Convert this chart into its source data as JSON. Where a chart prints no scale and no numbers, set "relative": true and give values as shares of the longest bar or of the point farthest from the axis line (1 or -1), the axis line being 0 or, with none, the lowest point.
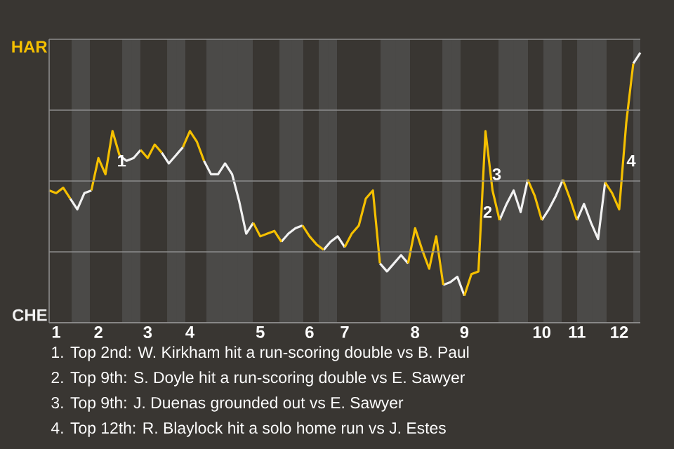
{
  "chart_data": {
    "type": "line",
    "relative": true,
    "grid": "y",
    "categories": [
      null,
      "1",
      null,
      null,
      null,
      null,
      null,
      "2",
      null,
      null,
      null,
      null,
      null,
      null,
      "3",
      null,
      null,
      null,
      null,
      null,
      "4",
      null,
      null,
      null,
      null,
      null,
      null,
      null,
      null,
      null,
      "5",
      null,
      null,
      null,
      null,
      null,
      null,
      "6",
      null,
      null,
      null,
      null,
      "7",
      null,
      null,
      null,
      null,
      null,
      null,
      null,
      null,
      null,
      "8",
      null,
      null,
      null,
      null,
      null,
      null,
      "9",
      null,
      null,
      null,
      null,
      null,
      null,
      null,
      null,
      null,
      null,
      "10",
      null,
      null,
      null,
      null,
      "11",
      null,
      null,
      null,
      null,
      null,
      "12",
      null,
      null,
      null
    ],
    "series": [
      {
        "color": "#f5c000",
        "values": [
          0.49,
          0.48,
          0.5,
          0.46,
          null,
          null,
          0.49,
          0.61,
          0.55,
          0.71,
          0.62,
          null,
          null,
          0.64,
          0.61,
          0.66,
          0.63,
          null,
          null,
          0.65,
          0.71,
          0.67,
          0.6,
          null,
          null,
          null,
          null,
          null,
          null,
          0.37,
          0.32,
          0.33,
          0.34,
          0.3,
          null,
          null,
          0.36,
          0.32,
          0.29,
          0.27,
          null,
          null,
          0.28,
          0.33,
          0.36,
          0.46,
          0.49,
          0.22,
          null,
          null,
          null,
          0.22,
          0.35,
          0.27,
          0.2,
          0.32,
          0.14,
          null,
          null,
          0.1,
          0.18,
          0.19,
          0.71,
          0.49,
          0.38,
          null,
          null,
          null,
          0.53,
          0.47,
          0.38,
          null,
          null,
          0.53,
          0.46,
          0.38,
          null,
          null,
          null,
          0.52,
          0.48,
          0.42,
          0.74,
          0.96,
          null
        ]
      },
      {
        "color": "#f2f2f2",
        "values": [
          null,
          null,
          null,
          0.46,
          0.42,
          0.48,
          0.49,
          null,
          null,
          null,
          0.62,
          0.6,
          0.61,
          0.64,
          null,
          null,
          0.63,
          0.59,
          0.62,
          0.65,
          null,
          null,
          0.6,
          0.55,
          0.55,
          0.59,
          0.55,
          0.45,
          0.33,
          0.37,
          null,
          null,
          null,
          0.3,
          0.33,
          0.35,
          0.36,
          null,
          null,
          0.27,
          0.3,
          0.32,
          0.28,
          null,
          null,
          null,
          null,
          0.22,
          0.19,
          0.22,
          0.25,
          0.22,
          null,
          null,
          null,
          null,
          0.14,
          0.15,
          0.17,
          0.1,
          null,
          null,
          null,
          null,
          0.38,
          0.44,
          0.49,
          0.41,
          0.53,
          null,
          0.38,
          0.42,
          0.47,
          0.53,
          null,
          0.38,
          0.44,
          0.37,
          0.31,
          0.52,
          null,
          null,
          null,
          0.96,
          1
        ]
      }
    ],
    "annotations": [
      "HAR",
      "CHE",
      {
        "text": "1",
        "y": 0.6
      },
      {
        "text": "2",
        "y": 0.41
      },
      {
        "text": "3",
        "y": 0.55
      },
      {
        "text": "4",
        "y": 0.6
      },
      "1. Top 2nd: W. Kirkham hit a run-scoring double vs B. Paul",
      "2. Top 9th: S. Doyle hit a run-scoring double vs E. Sawyer",
      "3. Top 9th: J. Duenas grounded out vs E. Sawyer",
      "4. Top 12th: R. Blaylock hit a solo home run vs J. Estes"
    ]
  }
}
